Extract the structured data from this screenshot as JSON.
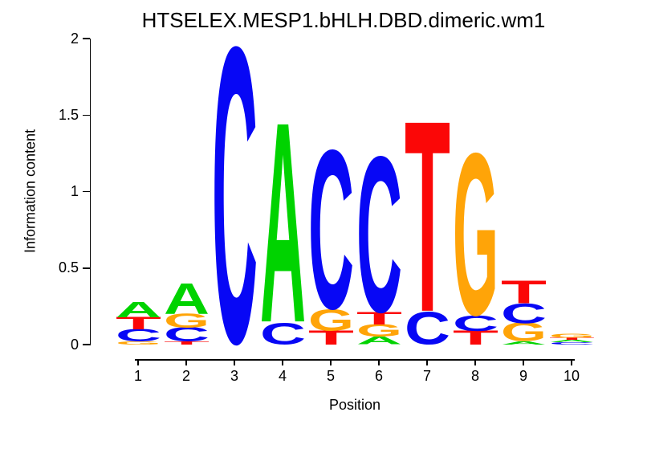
{
  "chart_data": {
    "type": "sequence-logo",
    "title": "HTSELEX.MESP1.bHLH.DBD.dimeric.wm1",
    "xlabel": "Position",
    "ylabel": "Information content",
    "ylim": [
      0,
      2
    ],
    "grid": false,
    "yticks": [
      {
        "value": 0,
        "label": "0"
      },
      {
        "value": 0.5,
        "label": "0.5"
      },
      {
        "value": 1,
        "label": "1"
      },
      {
        "value": 1.5,
        "label": "1.5"
      },
      {
        "value": 2,
        "label": "2"
      }
    ],
    "base_colors": {
      "A": "#00D300",
      "C": "#0707F5",
      "G": "#FFA408",
      "T": "#FB0707"
    },
    "stack_order_note": "each stack is listed top-to-bottom; bits = information content height",
    "positions": [
      {
        "position": "1",
        "stack": [
          {
            "base": "A",
            "bits": 0.1
          },
          {
            "base": "T",
            "bits": 0.08
          },
          {
            "base": "C",
            "bits": 0.08
          },
          {
            "base": "G",
            "bits": 0.02
          }
        ]
      },
      {
        "position": "2",
        "stack": [
          {
            "base": "A",
            "bits": 0.2
          },
          {
            "base": "G",
            "bits": 0.09
          },
          {
            "base": "C",
            "bits": 0.09
          },
          {
            "base": "T",
            "bits": 0.02
          }
        ]
      },
      {
        "position": "3",
        "stack": [
          {
            "base": "C",
            "bits": 1.92
          }
        ]
      },
      {
        "position": "4",
        "stack": [
          {
            "base": "A",
            "bits": 1.3
          },
          {
            "base": "C",
            "bits": 0.14
          }
        ]
      },
      {
        "position": "5",
        "stack": [
          {
            "base": "C",
            "bits": 1.03
          },
          {
            "base": "G",
            "bits": 0.14
          },
          {
            "base": "T",
            "bits": 0.09
          }
        ]
      },
      {
        "position": "6",
        "stack": [
          {
            "base": "C",
            "bits": 1.01
          },
          {
            "base": "T",
            "bits": 0.08
          },
          {
            "base": "G",
            "bits": 0.08
          },
          {
            "base": "A",
            "bits": 0.05
          }
        ]
      },
      {
        "position": "7",
        "stack": [
          {
            "base": "T",
            "bits": 1.24
          },
          {
            "base": "C",
            "bits": 0.21
          }
        ]
      },
      {
        "position": "8",
        "stack": [
          {
            "base": "G",
            "bits": 1.05
          },
          {
            "base": "C",
            "bits": 0.1
          },
          {
            "base": "T",
            "bits": 0.09
          }
        ]
      },
      {
        "position": "9",
        "stack": [
          {
            "base": "T",
            "bits": 0.15
          },
          {
            "base": "C",
            "bits": 0.13
          },
          {
            "base": "G",
            "bits": 0.12
          },
          {
            "base": "A",
            "bits": 0.02
          }
        ]
      },
      {
        "position": "10",
        "stack": [
          {
            "base": "G",
            "bits": 0.025
          },
          {
            "base": "T",
            "bits": 0.015
          },
          {
            "base": "A",
            "bits": 0.015
          },
          {
            "base": "C",
            "bits": 0.015
          }
        ]
      }
    ]
  }
}
